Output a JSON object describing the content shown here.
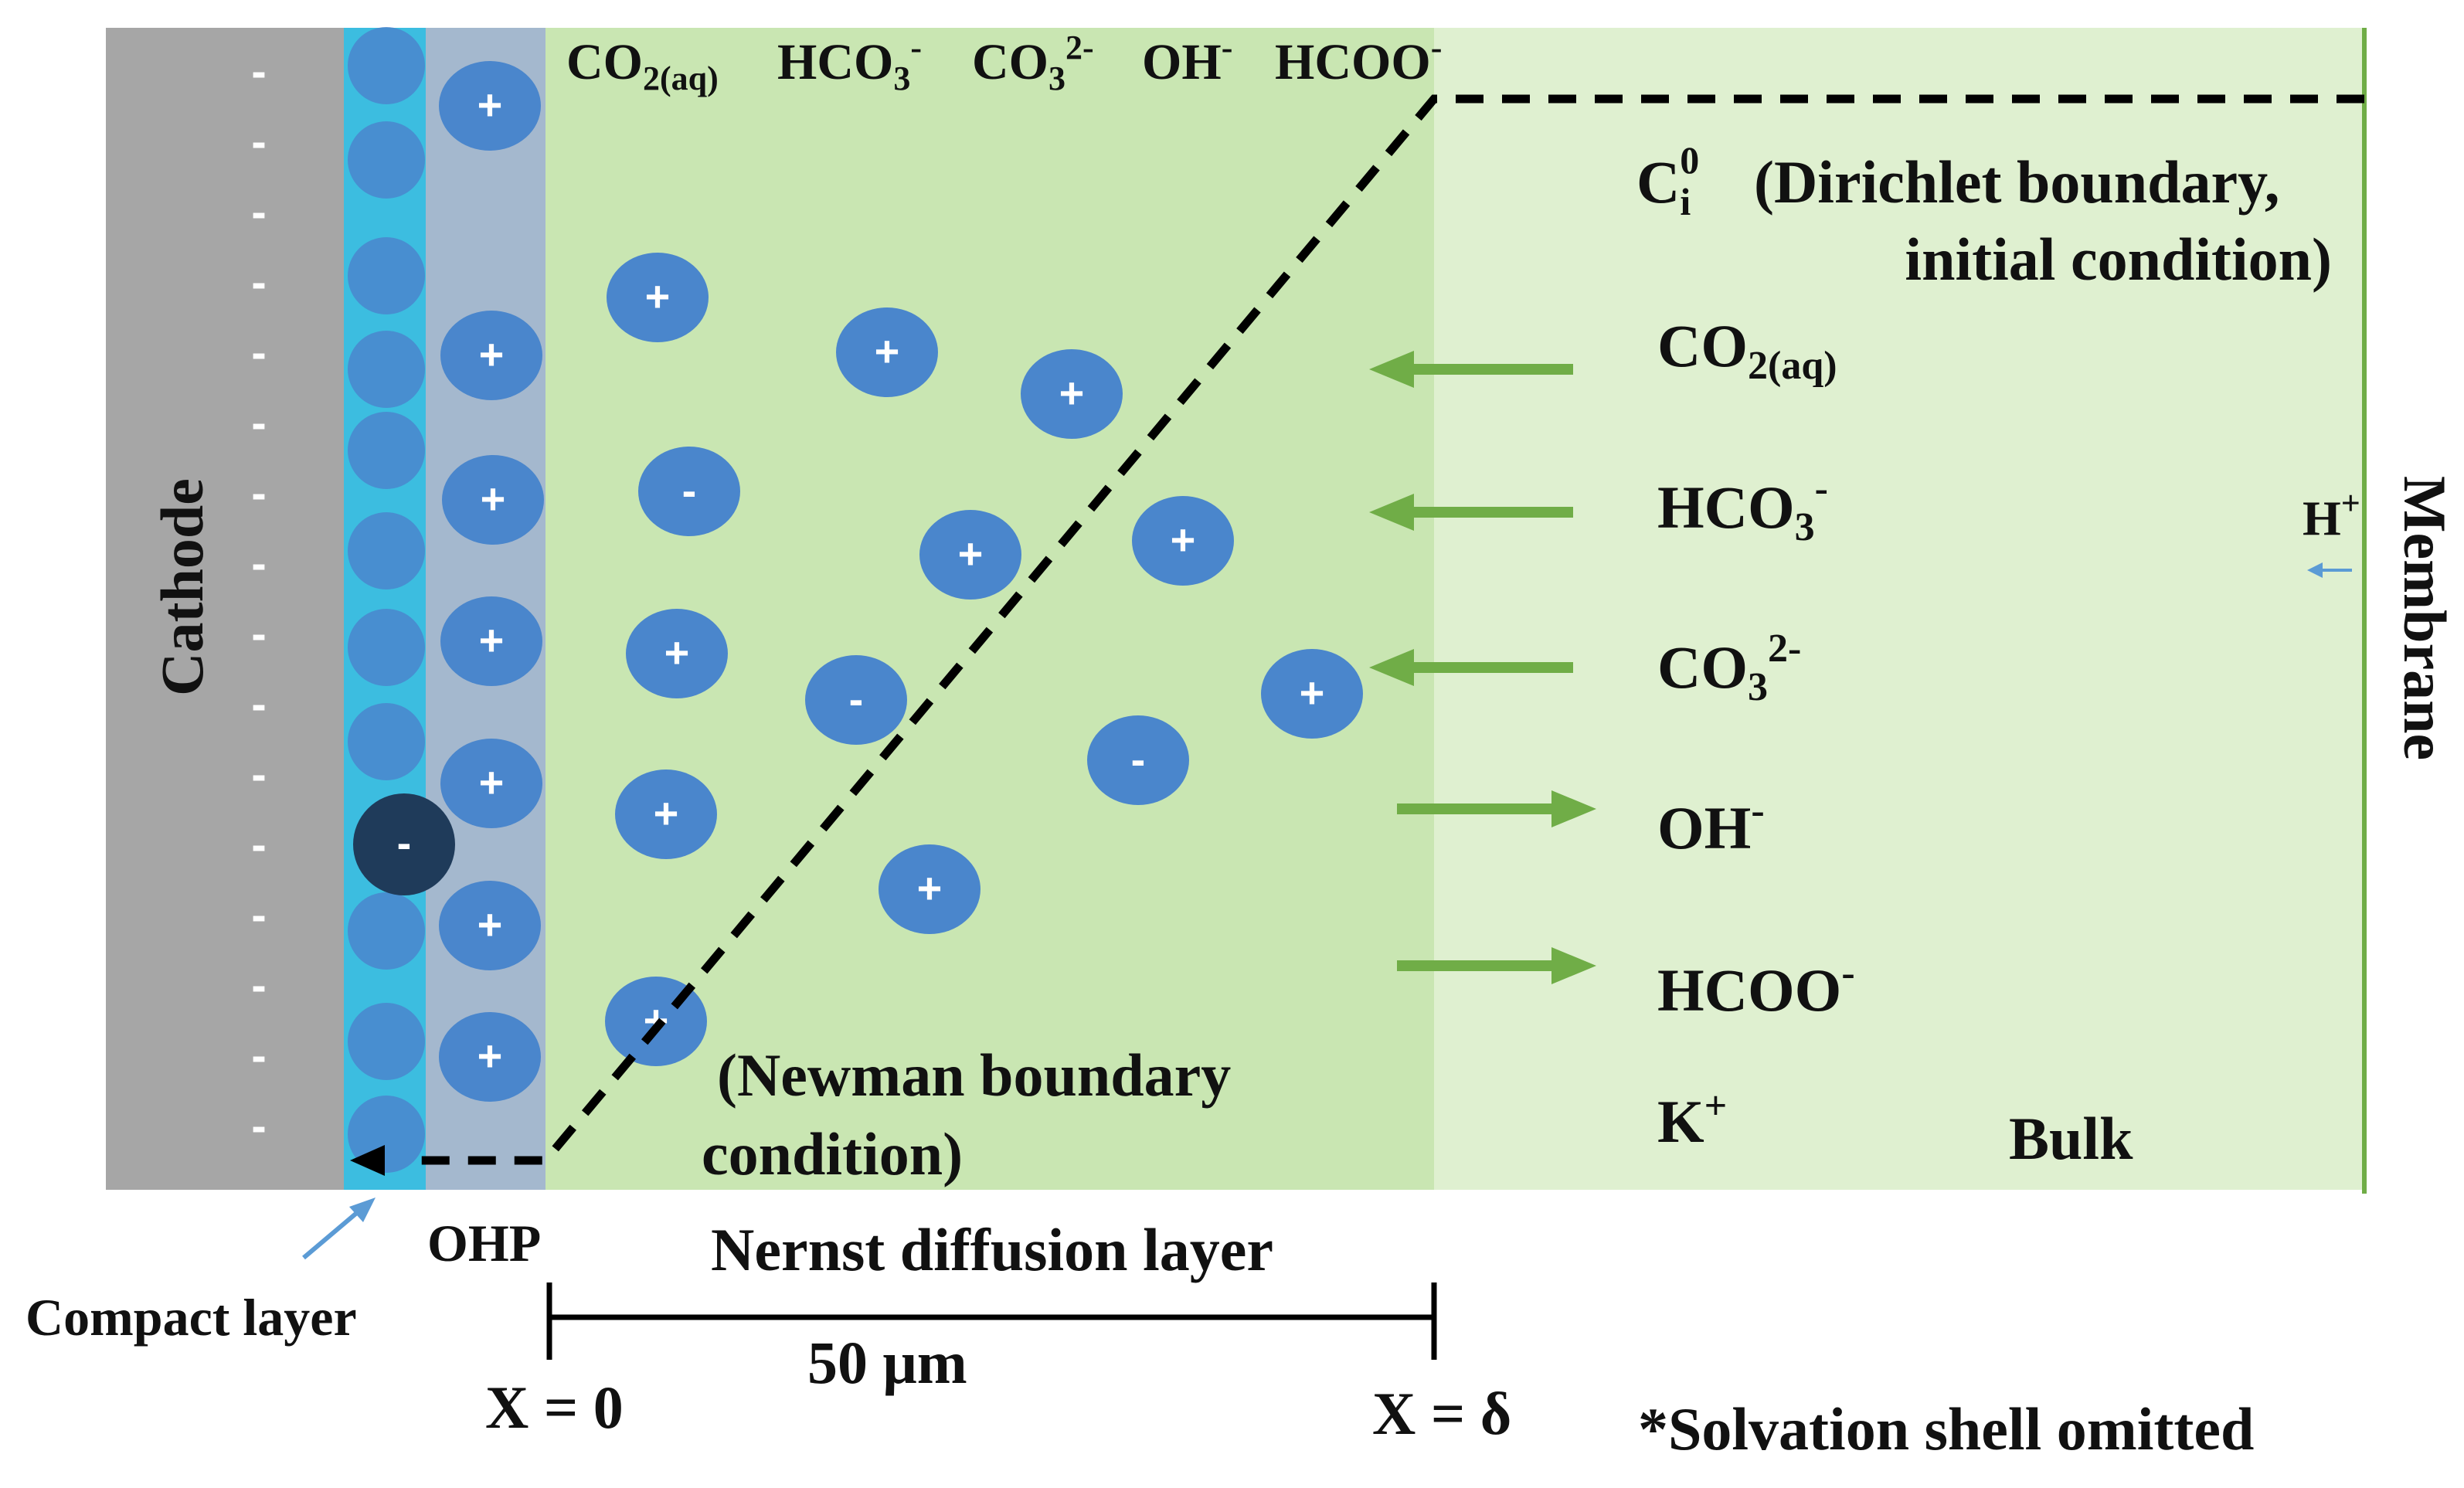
{
  "colors": {
    "cathode": "#a6a6a6",
    "compact_layer": "#3cbde0",
    "ohp_layer": "#a4b8ce",
    "nernst_layer": "#c9e6b2",
    "bulk": "#dff0d0",
    "membrane_line": "#70ad47",
    "ion": "#4a86cc",
    "adsorbed_anion": "#1f3b5a",
    "flux_arrow": "#70ad47",
    "blue_arrow": "#5b9bd5"
  },
  "labels": {
    "cathode": "Cathode",
    "membrane": "Membrane",
    "ohp": "OHP",
    "compact_layer": "Compact layer",
    "nernst_layer": "Nernst diffusion layer",
    "thickness": "50 μm",
    "x_zero": "X = 0",
    "x_delta": "X = δ",
    "solvation_note": "*Solvation shell omitted",
    "newman_line1": "(Newman boundary",
    "newman_line2": "condition)",
    "dirichlet_c": "C",
    "dirichlet_sub": "i",
    "dirichlet_sup": "0",
    "dirichlet_line1": "(Dirichlet boundary,",
    "dirichlet_line2": "initial condition)",
    "bulk": "Bulk",
    "h_plus": "H",
    "h_plus_sup": "+",
    "k_plus": "K",
    "k_plus_sup": "+"
  },
  "top_species": [
    {
      "base": "CO",
      "sub": "2(aq)",
      "sup": ""
    },
    {
      "base": "HCO",
      "sub": "3",
      "sup": "-"
    },
    {
      "base": "CO",
      "sub": "3",
      "sup": "2-"
    },
    {
      "base": "OH",
      "sub": "",
      "sup": "-"
    },
    {
      "base": "HCOO",
      "sub": "",
      "sup": "-"
    }
  ],
  "flux_species": [
    {
      "base": "CO",
      "sub": "2(aq)",
      "sup": "",
      "direction": "toward-cathode"
    },
    {
      "base": "HCO",
      "sub": "3",
      "sup": "-",
      "direction": "toward-cathode"
    },
    {
      "base": "CO",
      "sub": "3",
      "sup": "2-",
      "direction": "toward-cathode"
    },
    {
      "base": "OH",
      "sub": "",
      "sup": "-",
      "direction": "toward-bulk"
    },
    {
      "base": "HCOO",
      "sub": "",
      "sup": "-",
      "direction": "toward-bulk"
    }
  ],
  "surface_charge_sign": "-",
  "ion_signs": {
    "cation": "+",
    "anion": "-"
  }
}
